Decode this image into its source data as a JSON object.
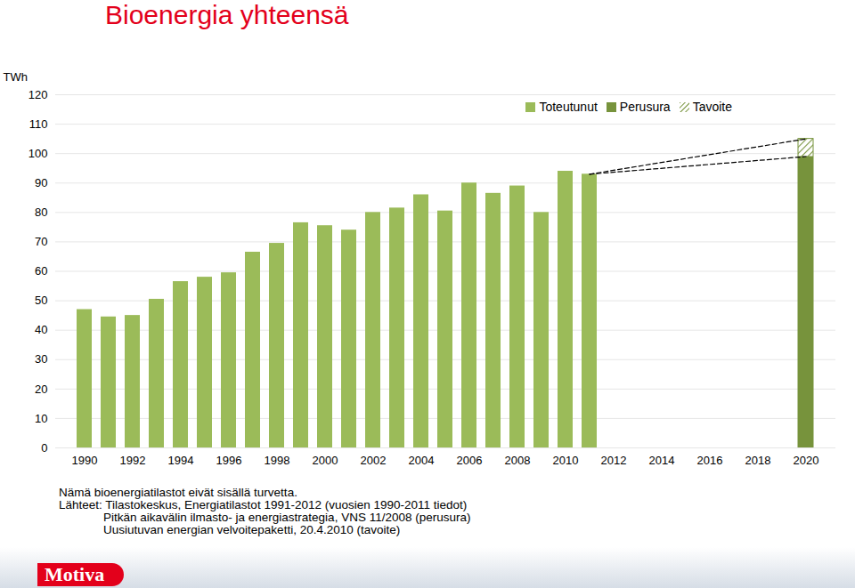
{
  "chart_data": {
    "type": "bar",
    "title": "Bioenergia yhteensä",
    "y_label": "TWh",
    "categories": [
      1990,
      1991,
      1992,
      1993,
      1994,
      1995,
      1996,
      1997,
      1998,
      1999,
      2000,
      2001,
      2002,
      2003,
      2004,
      2005,
      2006,
      2007,
      2008,
      2009,
      2010,
      2011,
      2012,
      2013,
      2014,
      2015,
      2016,
      2017,
      2018,
      2019,
      2020
    ],
    "series": [
      {
        "name": "Toteutunut",
        "color": "#9bbb59",
        "values": [
          47,
          44.5,
          45,
          50.5,
          56.5,
          58,
          59.5,
          66.5,
          69.5,
          76.5,
          75.5,
          74,
          80,
          81.5,
          86,
          80.5,
          90,
          86.5,
          89,
          80,
          94,
          93,
          null,
          null,
          null,
          null,
          null,
          null,
          null,
          null,
          null
        ]
      },
      {
        "name": "Perusura",
        "color": "#77933c",
        "values": [
          null,
          null,
          null,
          null,
          null,
          null,
          null,
          null,
          null,
          null,
          null,
          null,
          null,
          null,
          null,
          null,
          null,
          null,
          null,
          null,
          null,
          null,
          null,
          null,
          null,
          null,
          null,
          null,
          null,
          null,
          99
        ]
      },
      {
        "name": "Tavoite",
        "color": "#77933c",
        "values": [
          null,
          null,
          null,
          null,
          null,
          null,
          null,
          null,
          null,
          null,
          null,
          null,
          null,
          null,
          null,
          null,
          null,
          null,
          null,
          null,
          null,
          null,
          null,
          null,
          null,
          null,
          null,
          null,
          null,
          null,
          105
        ]
      }
    ],
    "xticks": [
      1990,
      1992,
      1994,
      1996,
      1998,
      2000,
      2002,
      2004,
      2006,
      2008,
      2010,
      2012,
      2014,
      2016,
      2018,
      2020
    ],
    "ylim": [
      0,
      120
    ],
    "yticks": [
      0,
      10,
      20,
      30,
      40,
      50,
      60,
      70,
      80,
      90,
      100,
      110,
      120
    ],
    "grid": true,
    "legend": "top-right",
    "notes": [
      "Nämä bioenergiatilastot eivät sisällä turvetta.",
      "Lähteet: Tilastokeskus, Energiatilastot 1991-2012 (vuosien 1990-2011 tiedot)",
      "Pitkän aikavälin ilmasto- ja energiastrategia, VNS 11/2008 (perusura)",
      "Uusiutuvan energian velvoitepaketti, 20.4.2010 (tavoite)"
    ],
    "logo": "Motiva"
  }
}
